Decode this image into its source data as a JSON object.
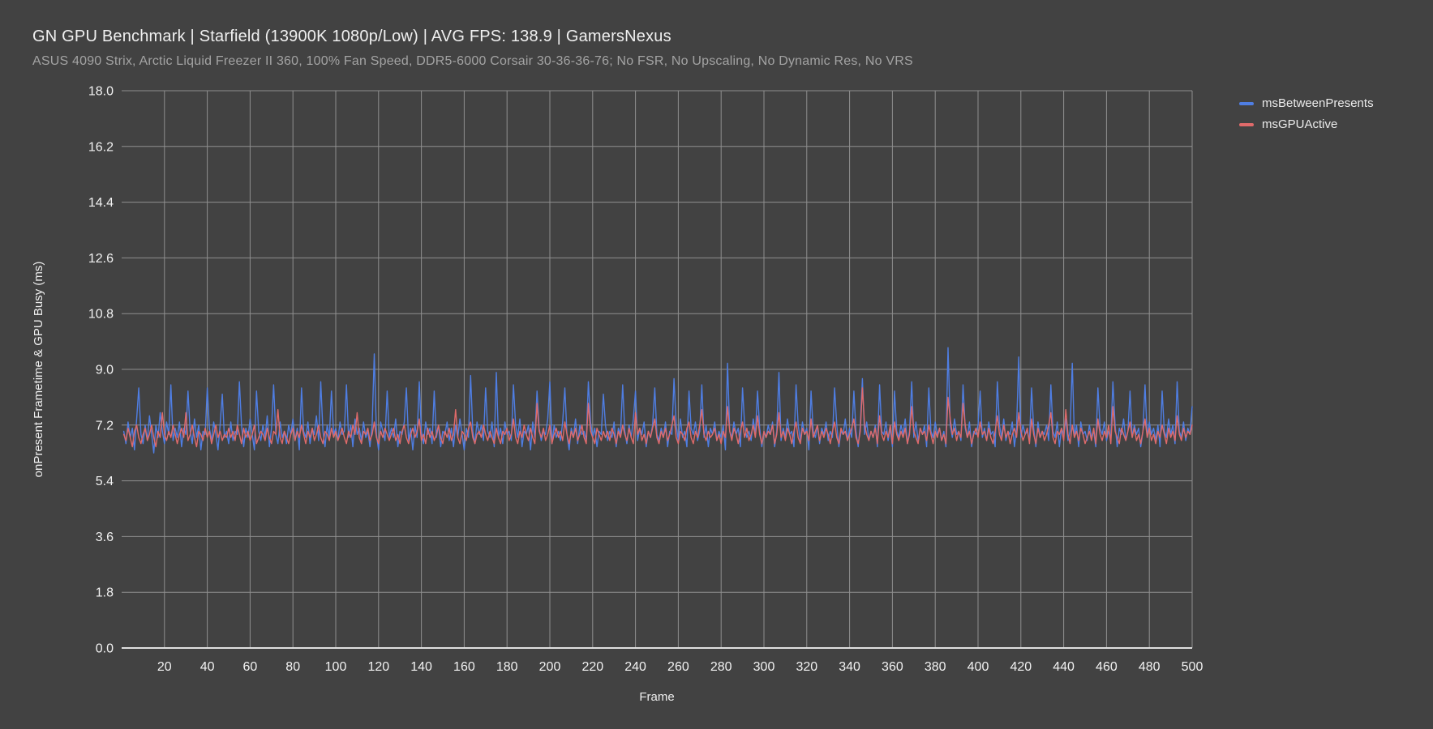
{
  "header": {
    "title": "GN GPU Benchmark | Starfield (13900K 1080p/Low) | AVG FPS: 138.9 | GamersNexus",
    "subtitle": "ASUS 4090 Strix, Arctic Liquid Freezer II 360, 100% Fan Speed, DDR5-6000 Corsair 30-36-36-76; No FSR, No Upscaling, No Dynamic Res, No VRS"
  },
  "colors": {
    "background": "#424242",
    "grid": "#8f8f8f",
    "axis": "#e0e0e0",
    "tick_text": "#f2f2f2",
    "axis_title_text": "#f0f0f0",
    "blue": "#4f7ee3",
    "red": "#e06a6a"
  },
  "legend": {
    "items": [
      {
        "label": "msBetweenPresents",
        "color": "#4f7ee3"
      },
      {
        "label": "msGPUActive",
        "color": "#e06a6a"
      }
    ]
  },
  "chart_data": {
    "type": "line",
    "title": "GN GPU Benchmark | Starfield (13900K 1080p/Low) | AVG FPS: 138.9 | GamersNexus",
    "xlabel": "Frame",
    "ylabel": "onPresent Frametime & GPU Busy (ms)",
    "xlim": [
      0,
      500
    ],
    "ylim": [
      0,
      18
    ],
    "x_ticks": [
      20,
      40,
      60,
      80,
      100,
      120,
      140,
      160,
      180,
      200,
      220,
      240,
      260,
      280,
      300,
      320,
      340,
      360,
      380,
      400,
      420,
      440,
      460,
      480,
      500
    ],
    "y_ticks": [
      0,
      1.8,
      3.6,
      5.4,
      7.2,
      9.0,
      10.8,
      12.6,
      14.4,
      16.2,
      18.0
    ],
    "grid": true,
    "legend_position": "top-right",
    "x_start": 1,
    "x_step": 1,
    "series": [
      {
        "name": "msBetweenPresents",
        "color": "#4f7ee3",
        "values": [
          7.0,
          6.6,
          7.3,
          6.8,
          7.1,
          6.4,
          7.4,
          8.4,
          6.9,
          6.6,
          7.2,
          6.7,
          7.5,
          6.9,
          6.3,
          7.2,
          6.8,
          7.6,
          7.0,
          6.6,
          7.3,
          6.9,
          8.5,
          6.7,
          7.1,
          6.8,
          7.3,
          6.5,
          7.1,
          6.9,
          8.3,
          7.0,
          6.6,
          7.4,
          6.8,
          7.2,
          6.4,
          7.0,
          6.9,
          8.4,
          7.1,
          6.7,
          7.3,
          6.9,
          6.4,
          7.2,
          8.2,
          6.8,
          7.0,
          6.6,
          7.3,
          6.7,
          7.0,
          6.9,
          8.6,
          7.2,
          6.5,
          7.1,
          6.8,
          7.4,
          6.9,
          6.4,
          8.3,
          7.0,
          6.7,
          7.2,
          6.8,
          7.5,
          6.5,
          7.1,
          8.5,
          6.9,
          6.6,
          7.3,
          6.8,
          7.0,
          6.6,
          7.2,
          6.9,
          7.4,
          6.7,
          7.1,
          6.4,
          8.4,
          7.0,
          6.8,
          7.3,
          6.6,
          7.1,
          6.9,
          7.5,
          6.7,
          8.6,
          7.0,
          6.5,
          7.2,
          6.8,
          8.3,
          6.9,
          7.1,
          6.7,
          7.3,
          6.9,
          7.0,
          8.5,
          6.8,
          7.2,
          6.5,
          7.4,
          6.9,
          7.1,
          6.7,
          7.3,
          6.8,
          7.0,
          6.5,
          7.2,
          9.5,
          6.9,
          6.4,
          7.3,
          7.0,
          6.7,
          8.3,
          6.8,
          7.1,
          6.8,
          7.4,
          6.5,
          7.0,
          6.9,
          7.3,
          8.4,
          6.7,
          7.1,
          6.4,
          7.2,
          6.8,
          8.6,
          7.0,
          6.6,
          7.3,
          6.9,
          7.1,
          6.6,
          8.3,
          6.8,
          7.2,
          6.5,
          7.0,
          6.9,
          7.3,
          6.7,
          7.1,
          6.5,
          7.2,
          6.8,
          7.4,
          6.9,
          6.4,
          7.1,
          6.8,
          8.8,
          7.0,
          6.6,
          7.3,
          6.9,
          7.2,
          6.7,
          8.4,
          7.0,
          6.8,
          7.3,
          6.5,
          8.9,
          6.8,
          7.1,
          6.6,
          7.3,
          6.9,
          7.0,
          6.7,
          8.5,
          7.2,
          6.8,
          7.4,
          6.5,
          7.0,
          6.9,
          7.2,
          6.4,
          7.3,
          6.8,
          8.3,
          7.1,
          6.7,
          7.0,
          6.9,
          7.4,
          8.6,
          6.6,
          7.2,
          6.8,
          7.0,
          6.7,
          7.3,
          8.4,
          6.9,
          6.4,
          7.1,
          6.8,
          7.4,
          6.6,
          7.2,
          6.9,
          7.0,
          6.7,
          8.6,
          7.3,
          6.8,
          7.1,
          6.5,
          7.0,
          6.9,
          8.2,
          7.2,
          6.7,
          7.0,
          6.8,
          7.3,
          6.5,
          7.1,
          6.9,
          8.5,
          7.0,
          6.6,
          7.2,
          6.8,
          7.4,
          8.3,
          6.7,
          7.1,
          6.9,
          7.3,
          6.5,
          7.0,
          6.8,
          7.2,
          8.4,
          6.9,
          6.7,
          7.1,
          6.8,
          7.3,
          6.5,
          7.0,
          6.9,
          8.7,
          7.2,
          6.7,
          7.4,
          6.8,
          7.0,
          6.5,
          8.3,
          7.1,
          6.9,
          7.3,
          6.7,
          7.0,
          8.5,
          6.8,
          7.2,
          6.5,
          7.1,
          6.9,
          7.3,
          6.7,
          7.0,
          6.8,
          7.2,
          6.4,
          9.2,
          7.0,
          6.8,
          7.3,
          6.9,
          7.1,
          6.5,
          8.4,
          7.2,
          6.8,
          7.0,
          6.7,
          7.4,
          6.9,
          8.3,
          7.1,
          6.5,
          7.0,
          6.8,
          7.2,
          6.9,
          7.3,
          6.5,
          7.0,
          8.9,
          6.7,
          7.1,
          6.8,
          7.4,
          6.9,
          7.0,
          6.5,
          8.5,
          7.2,
          6.7,
          7.3,
          6.9,
          7.1,
          6.4,
          8.3,
          7.0,
          6.8,
          7.2,
          6.6,
          7.1,
          6.9,
          7.3,
          6.7,
          7.0,
          6.8,
          8.4,
          7.2,
          6.5,
          7.0,
          6.9,
          7.4,
          6.7,
          7.1,
          6.8,
          8.3,
          7.0,
          6.5,
          7.2,
          8.7,
          6.9,
          7.3,
          6.7,
          7.0,
          6.8,
          7.2,
          6.5,
          8.5,
          7.0,
          6.9,
          7.3,
          6.7,
          7.1,
          6.5,
          8.3,
          7.0,
          6.8,
          7.2,
          6.9,
          7.4,
          6.6,
          7.0,
          8.6,
          6.8,
          7.3,
          6.7,
          7.1,
          6.9,
          7.2,
          6.5,
          8.4,
          7.0,
          6.8,
          7.3,
          6.9,
          7.1,
          6.7,
          7.0,
          6.5,
          9.7,
          7.2,
          6.8,
          7.4,
          6.9,
          7.0,
          6.7,
          8.5,
          7.1,
          6.8,
          7.3,
          6.5,
          7.0,
          6.9,
          7.2,
          8.3,
          6.8,
          7.1,
          6.7,
          7.3,
          6.9,
          7.0,
          6.5,
          8.6,
          7.2,
          6.8,
          7.4,
          6.7,
          7.0,
          6.9,
          7.3,
          6.5,
          7.1,
          9.4,
          6.8,
          7.2,
          6.9,
          7.0,
          6.7,
          8.4,
          7.1,
          6.5,
          7.3,
          6.8,
          7.0,
          6.9,
          7.2,
          6.7,
          8.5,
          7.0,
          6.8,
          7.3,
          6.5,
          7.1,
          6.9,
          7.4,
          6.7,
          7.0,
          9.2,
          6.8,
          7.2,
          6.5,
          7.3,
          6.9,
          7.0,
          6.7,
          7.2,
          6.8,
          7.0,
          6.5,
          8.4,
          7.1,
          6.9,
          7.3,
          6.7,
          7.0,
          6.8,
          8.6,
          7.2,
          6.5,
          7.1,
          6.9,
          7.4,
          6.7,
          7.0,
          8.3,
          6.8,
          7.2,
          6.9,
          7.1,
          6.5,
          7.0,
          8.5,
          6.8,
          7.3,
          6.9,
          7.1,
          6.7,
          7.2,
          6.5,
          8.3,
          7.0,
          6.8,
          7.4,
          6.9,
          7.2,
          6.6,
          8.6,
          7.0,
          6.8,
          7.3,
          6.7,
          7.1,
          6.9,
          7.8
        ]
      },
      {
        "name": "msGPUActive",
        "color": "#e06a6a",
        "values": [
          6.9,
          6.7,
          7.1,
          6.8,
          6.5,
          7.0,
          7.2,
          6.8,
          6.6,
          6.9,
          7.1,
          6.7,
          6.9,
          7.2,
          6.8,
          6.5,
          7.0,
          6.8,
          7.6,
          6.9,
          6.7,
          7.0,
          6.8,
          7.2,
          6.9,
          6.6,
          6.9,
          7.1,
          6.8,
          7.6,
          6.7,
          6.9,
          7.2,
          6.8,
          6.5,
          7.0,
          6.9,
          6.7,
          7.1,
          6.8,
          7.0,
          6.6,
          6.9,
          7.2,
          6.8,
          7.0,
          6.7,
          6.9,
          6.8,
          7.1,
          6.8,
          7.0,
          6.7,
          7.2,
          6.9,
          6.6,
          7.1,
          6.8,
          7.0,
          6.7,
          6.9,
          7.2,
          6.6,
          6.8,
          7.0,
          6.9,
          6.7,
          7.1,
          6.8,
          6.6,
          7.0,
          6.9,
          7.7,
          6.8,
          6.6,
          7.0,
          6.8,
          6.6,
          6.9,
          7.1,
          6.7,
          7.0,
          6.8,
          7.2,
          6.9,
          6.6,
          7.0,
          6.8,
          7.1,
          6.7,
          6.9,
          7.2,
          6.8,
          6.6,
          7.0,
          6.9,
          6.7,
          7.1,
          6.8,
          7.0,
          6.7,
          6.9,
          7.1,
          6.8,
          6.6,
          7.0,
          6.8,
          7.2,
          6.9,
          7.6,
          6.8,
          6.6,
          7.0,
          6.9,
          7.1,
          6.7,
          6.9,
          7.3,
          6.8,
          6.6,
          7.0,
          6.8,
          7.1,
          6.9,
          6.7,
          6.9,
          7.1,
          6.7,
          6.9,
          6.6,
          7.0,
          7.2,
          6.8,
          6.6,
          6.9,
          7.1,
          6.8,
          7.0,
          7.4,
          6.7,
          6.9,
          6.6,
          7.1,
          6.8,
          7.0,
          6.7,
          6.9,
          7.2,
          6.8,
          6.6,
          7.0,
          6.8,
          7.1,
          6.7,
          6.9,
          7.7,
          6.8,
          6.6,
          7.0,
          6.9,
          6.7,
          7.1,
          7.3,
          6.8,
          6.6,
          6.9,
          7.0,
          6.8,
          7.2,
          6.9,
          6.7,
          7.0,
          6.8,
          6.6,
          7.1,
          6.8,
          6.6,
          7.0,
          6.9,
          7.1,
          6.7,
          6.9,
          7.4,
          6.8,
          6.6,
          7.0,
          6.8,
          7.2,
          6.9,
          6.7,
          7.1,
          6.8,
          6.6,
          7.9,
          7.0,
          6.8,
          7.1,
          6.7,
          6.9,
          7.2,
          6.6,
          6.9,
          7.1,
          6.8,
          7.0,
          6.7,
          7.3,
          6.9,
          6.6,
          7.0,
          6.8,
          7.1,
          6.7,
          6.9,
          7.2,
          6.8,
          6.6,
          7.9,
          7.0,
          6.8,
          6.6,
          7.1,
          6.9,
          6.7,
          7.0,
          6.8,
          7.0,
          6.7,
          7.1,
          6.9,
          6.6,
          7.0,
          6.8,
          7.2,
          6.9,
          6.7,
          7.1,
          6.8,
          6.6,
          7.6,
          6.9,
          7.1,
          6.7,
          6.9,
          6.6,
          7.0,
          6.8,
          7.1,
          7.4,
          6.8,
          6.6,
          7.0,
          6.8,
          7.1,
          6.7,
          6.9,
          7.2,
          7.5,
          6.8,
          6.6,
          7.0,
          6.9,
          6.7,
          7.1,
          7.3,
          6.8,
          6.6,
          7.0,
          6.8,
          7.2,
          7.7,
          6.9,
          6.7,
          7.0,
          6.8,
          6.9,
          7.1,
          6.7,
          6.9,
          6.6,
          7.0,
          6.8,
          7.8,
          7.0,
          6.7,
          7.1,
          6.9,
          6.6,
          7.0,
          7.3,
          6.8,
          7.1,
          6.7,
          6.9,
          7.2,
          6.8,
          7.5,
          6.9,
          6.6,
          7.0,
          6.8,
          7.0,
          6.9,
          7.2,
          6.6,
          6.9,
          7.6,
          6.8,
          7.0,
          6.7,
          7.1,
          6.9,
          6.6,
          7.0,
          7.3,
          6.8,
          6.6,
          7.1,
          6.9,
          7.0,
          6.7,
          7.4,
          6.8,
          7.0,
          7.2,
          6.7,
          7.0,
          6.8,
          7.1,
          6.9,
          6.6,
          7.0,
          7.3,
          6.8,
          6.6,
          7.1,
          6.9,
          7.0,
          6.7,
          6.9,
          7.1,
          7.4,
          6.8,
          6.6,
          7.0,
          8.4,
          7.2,
          6.9,
          6.7,
          7.0,
          6.8,
          7.1,
          6.6,
          7.5,
          6.9,
          6.7,
          7.0,
          6.8,
          7.2,
          6.6,
          7.3,
          6.9,
          6.7,
          7.0,
          6.8,
          7.1,
          6.6,
          6.9,
          7.8,
          7.0,
          6.8,
          6.6,
          7.1,
          6.9,
          7.0,
          6.7,
          7.2,
          6.9,
          6.6,
          7.0,
          6.8,
          7.1,
          6.7,
          6.9,
          6.6,
          8.1,
          7.4,
          6.9,
          7.1,
          6.7,
          7.0,
          6.8,
          7.9,
          7.2,
          6.8,
          7.0,
          6.6,
          6.9,
          7.1,
          6.8,
          7.3,
          6.9,
          7.0,
          6.7,
          7.1,
          6.8,
          6.6,
          7.0,
          7.5,
          6.9,
          6.7,
          7.2,
          6.8,
          7.0,
          6.6,
          6.9,
          7.1,
          6.8,
          7.6,
          7.0,
          6.7,
          6.9,
          7.1,
          6.6,
          7.4,
          6.9,
          6.6,
          7.1,
          6.8,
          7.0,
          6.7,
          6.9,
          7.2,
          7.6,
          6.8,
          6.6,
          7.0,
          6.9,
          7.1,
          6.7,
          7.7,
          6.9,
          6.6,
          7.2,
          6.8,
          7.0,
          6.7,
          7.1,
          6.9,
          6.6,
          6.8,
          7.0,
          6.7,
          7.1,
          6.6,
          7.4,
          6.9,
          6.7,
          7.0,
          6.8,
          7.2,
          6.6,
          7.8,
          7.0,
          6.8,
          6.6,
          7.1,
          6.9,
          6.7,
          7.0,
          7.3,
          6.8,
          7.1,
          6.7,
          6.9,
          6.6,
          7.0,
          7.4,
          6.8,
          7.1,
          6.7,
          6.9,
          6.6,
          7.0,
          6.8,
          7.2,
          6.9,
          6.6,
          7.1,
          6.8,
          7.0,
          6.7,
          7.5,
          6.9,
          6.7,
          7.1,
          6.8,
          7.0,
          6.9,
          7.2
        ]
      }
    ]
  }
}
